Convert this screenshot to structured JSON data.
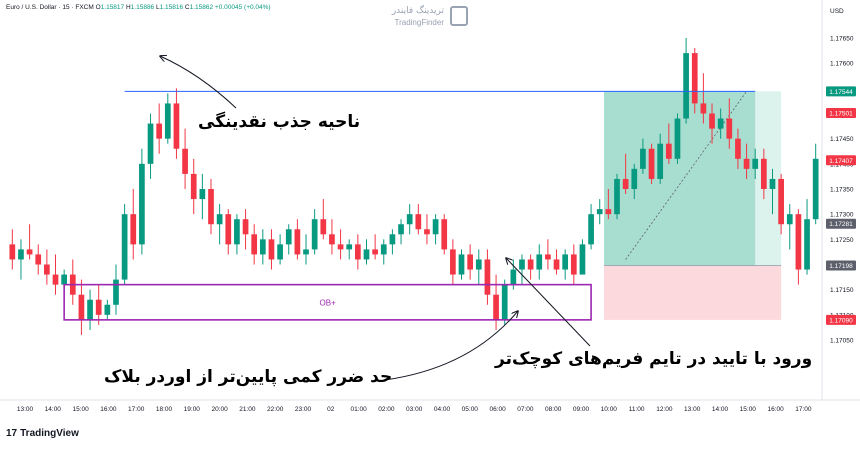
{
  "header": {
    "symbol_line": "Euro / U.S. Dollar · 15 · FXCM",
    "open_label": "O",
    "open": "1.15817",
    "high_label": "H",
    "high": "1.15886",
    "low_label": "L",
    "low": "1.15816",
    "close_label": "C",
    "close": "1.15862",
    "change": "+0.00045 (+0.04%)"
  },
  "watermark": {
    "name_fa": "تریدینگ فایندر",
    "name_en": "TradingFinder"
  },
  "currency": "USD",
  "brand": {
    "logo": "17",
    "name": "TradingView"
  },
  "annotations": {
    "liquidity": "ناحیه جذب نقدینگی",
    "entry": "ورود با تایید در تایم فریم‌های کوچک‌تر",
    "stoploss": "حد ضرر کمی پایین‌تر از اوردر بلاک",
    "ob": "OB+"
  },
  "chart_data": {
    "type": "candlestick",
    "y_ticks": [
      "1.17650",
      "1.17600",
      "1.17550",
      "1.17500",
      "1.17450",
      "1.17400",
      "1.17350",
      "1.17300",
      "1.17250",
      "1.17200",
      "1.17150",
      "1.17100",
      "1.17050"
    ],
    "price_badges": [
      {
        "text": "1.17544",
        "color": "#089981"
      },
      {
        "text": "1.17501",
        "color": "#f23645"
      },
      {
        "text": "1.17407",
        "color": "#f23645"
      },
      {
        "text": "1.17281",
        "color": "#5d606b"
      },
      {
        "text": "1.17198",
        "color": "#5d606b"
      },
      {
        "text": "1.17090",
        "color": "#f23645"
      }
    ],
    "x_ticks": [
      "13:00",
      "14:00",
      "15:00",
      "16:00",
      "17:00",
      "18:00",
      "19:00",
      "20:00",
      "21:00",
      "22:00",
      "23:00",
      "02",
      "01:00",
      "02:00",
      "03:00",
      "04:00",
      "05:00",
      "06:00",
      "07:00",
      "08:00",
      "09:00",
      "10:00",
      "11:00",
      "12:00",
      "13:00",
      "14:00",
      "15:00",
      "16:00",
      "17:00"
    ],
    "liquidity_level": 1.17544,
    "order_block": {
      "top": 1.1716,
      "bottom": 1.1709
    },
    "position": {
      "entry": 1.17198,
      "stop": 1.1709,
      "target": 1.17544
    },
    "candles": [
      [
        1.1724,
        1.1727,
        1.1719,
        1.1721
      ],
      [
        1.1721,
        1.1725,
        1.1717,
        1.1723
      ],
      [
        1.1723,
        1.1728,
        1.1721,
        1.1722
      ],
      [
        1.1722,
        1.1724,
        1.1718,
        1.172
      ],
      [
        1.172,
        1.1723,
        1.1716,
        1.1718
      ],
      [
        1.1718,
        1.1722,
        1.1714,
        1.1716
      ],
      [
        1.1716,
        1.1719,
        1.1713,
        1.1718
      ],
      [
        1.1718,
        1.1721,
        1.1712,
        1.1714
      ],
      [
        1.1714,
        1.1717,
        1.1706,
        1.1709
      ],
      [
        1.1709,
        1.1715,
        1.1707,
        1.1713
      ],
      [
        1.1713,
        1.1716,
        1.1708,
        1.171
      ],
      [
        1.171,
        1.1713,
        1.1709,
        1.1712
      ],
      [
        1.1712,
        1.172,
        1.171,
        1.1717
      ],
      [
        1.1717,
        1.1732,
        1.1716,
        1.173
      ],
      [
        1.173,
        1.1735,
        1.1721,
        1.1724
      ],
      [
        1.1724,
        1.1743,
        1.1722,
        1.174
      ],
      [
        1.174,
        1.175,
        1.1737,
        1.1748
      ],
      [
        1.1748,
        1.1752,
        1.1742,
        1.1745
      ],
      [
        1.1745,
        1.1754,
        1.1744,
        1.1752
      ],
      [
        1.1752,
        1.1755,
        1.1741,
        1.1743
      ],
      [
        1.1743,
        1.1747,
        1.1735,
        1.1738
      ],
      [
        1.1738,
        1.1741,
        1.173,
        1.1733
      ],
      [
        1.1733,
        1.1738,
        1.1729,
        1.1735
      ],
      [
        1.1735,
        1.1737,
        1.1726,
        1.1728
      ],
      [
        1.1728,
        1.1732,
        1.1724,
        1.173
      ],
      [
        1.173,
        1.1731,
        1.1722,
        1.1724
      ],
      [
        1.1724,
        1.173,
        1.1722,
        1.1729
      ],
      [
        1.1729,
        1.1731,
        1.1723,
        1.1726
      ],
      [
        1.1726,
        1.1728,
        1.172,
        1.1722
      ],
      [
        1.1722,
        1.1727,
        1.172,
        1.1725
      ],
      [
        1.1725,
        1.1727,
        1.1719,
        1.1721
      ],
      [
        1.1721,
        1.1726,
        1.172,
        1.1724
      ],
      [
        1.1724,
        1.1728,
        1.1722,
        1.1727
      ],
      [
        1.1727,
        1.1729,
        1.1721,
        1.1722
      ],
      [
        1.1722,
        1.1726,
        1.172,
        1.1723
      ],
      [
        1.1723,
        1.1731,
        1.1722,
        1.1729
      ],
      [
        1.1729,
        1.1733,
        1.1725,
        1.1726
      ],
      [
        1.1726,
        1.1729,
        1.1722,
        1.1724
      ],
      [
        1.1724,
        1.1727,
        1.1721,
        1.1723
      ],
      [
        1.1723,
        1.1725,
        1.1721,
        1.1724
      ],
      [
        1.1724,
        1.1726,
        1.1719,
        1.1721
      ],
      [
        1.1721,
        1.1725,
        1.172,
        1.1723
      ],
      [
        1.1723,
        1.1726,
        1.1721,
        1.1722
      ],
      [
        1.1722,
        1.1725,
        1.172,
        1.1724
      ],
      [
        1.1724,
        1.1727,
        1.1722,
        1.1726
      ],
      [
        1.1726,
        1.1729,
        1.1724,
        1.1728
      ],
      [
        1.1728,
        1.1732,
        1.1726,
        1.173
      ],
      [
        1.173,
        1.1732,
        1.1726,
        1.1727
      ],
      [
        1.1727,
        1.173,
        1.1724,
        1.1726
      ],
      [
        1.1726,
        1.173,
        1.1724,
        1.1729
      ],
      [
        1.1729,
        1.173,
        1.1722,
        1.1723
      ],
      [
        1.1723,
        1.1725,
        1.1716,
        1.1718
      ],
      [
        1.1718,
        1.1723,
        1.1717,
        1.1722
      ],
      [
        1.1722,
        1.1724,
        1.1717,
        1.1719
      ],
      [
        1.1719,
        1.1723,
        1.1716,
        1.1721
      ],
      [
        1.1721,
        1.1723,
        1.1712,
        1.1714
      ],
      [
        1.1714,
        1.1718,
        1.1707,
        1.1709
      ],
      [
        1.1709,
        1.1717,
        1.1708,
        1.1716
      ],
      [
        1.1716,
        1.1721,
        1.1715,
        1.1719
      ],
      [
        1.1719,
        1.1722,
        1.1716,
        1.1721
      ],
      [
        1.1721,
        1.1722,
        1.1717,
        1.1719
      ],
      [
        1.1719,
        1.1724,
        1.1717,
        1.1722
      ],
      [
        1.1722,
        1.1725,
        1.1719,
        1.1721
      ],
      [
        1.1721,
        1.1723,
        1.1718,
        1.1719
      ],
      [
        1.1719,
        1.1723,
        1.1717,
        1.1722
      ],
      [
        1.1722,
        1.1724,
        1.1716,
        1.1718
      ],
      [
        1.1718,
        1.1725,
        1.1718,
        1.1724
      ],
      [
        1.1724,
        1.1732,
        1.1723,
        1.173
      ],
      [
        1.173,
        1.1733,
        1.1728,
        1.1731
      ],
      [
        1.1731,
        1.1735,
        1.1729,
        1.173
      ],
      [
        1.173,
        1.1738,
        1.1729,
        1.1737
      ],
      [
        1.1737,
        1.1742,
        1.1734,
        1.1735
      ],
      [
        1.1735,
        1.174,
        1.1733,
        1.1739
      ],
      [
        1.1739,
        1.1745,
        1.1738,
        1.1743
      ],
      [
        1.1743,
        1.1744,
        1.1736,
        1.1737
      ],
      [
        1.1737,
        1.1746,
        1.1736,
        1.1744
      ],
      [
        1.1744,
        1.1748,
        1.174,
        1.1741
      ],
      [
        1.1741,
        1.175,
        1.174,
        1.1749
      ],
      [
        1.1749,
        1.1765,
        1.1748,
        1.1762
      ],
      [
        1.1762,
        1.1763,
        1.175,
        1.1752
      ],
      [
        1.1752,
        1.1758,
        1.1748,
        1.175
      ],
      [
        1.175,
        1.1752,
        1.1744,
        1.1747
      ],
      [
        1.1747,
        1.1751,
        1.1745,
        1.1749
      ],
      [
        1.1749,
        1.1753,
        1.1743,
        1.1745
      ],
      [
        1.1745,
        1.1747,
        1.1739,
        1.1741
      ],
      [
        1.1741,
        1.1744,
        1.1737,
        1.1739
      ],
      [
        1.1739,
        1.1743,
        1.1737,
        1.1741
      ],
      [
        1.1741,
        1.1743,
        1.1733,
        1.1735
      ],
      [
        1.1735,
        1.1739,
        1.173,
        1.1737
      ],
      [
        1.1737,
        1.1738,
        1.1726,
        1.1728
      ],
      [
        1.1728,
        1.1732,
        1.1723,
        1.173
      ],
      [
        1.173,
        1.1731,
        1.1716,
        1.1719
      ],
      [
        1.1719,
        1.1733,
        1.1718,
        1.1729
      ],
      [
        1.1729,
        1.1744,
        1.1728,
        1.1741
      ]
    ]
  }
}
